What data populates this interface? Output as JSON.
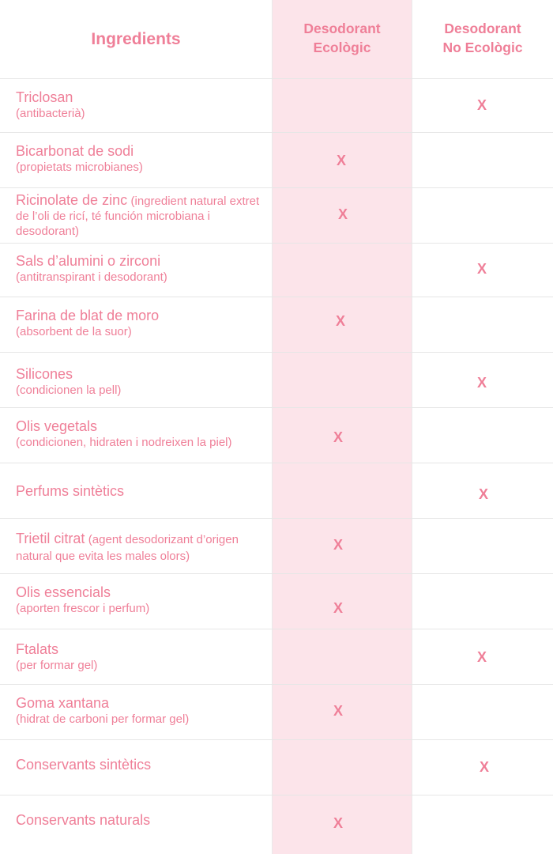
{
  "header": {
    "ingredients": "Ingredients",
    "eco_line1": "Desodorant",
    "eco_line2": "Ecològic",
    "noneco_line1": "Desodorant",
    "noneco_line2": "No Ecològic"
  },
  "colors": {
    "accent_text": "#ef7f98",
    "eco_column_bg": "#fce4ea",
    "grid_line": "#e6e6e6"
  },
  "rows": [
    {
      "name": "Triclosan",
      "note": "(antibacterià)",
      "eco": "",
      "noneco": "X"
    },
    {
      "name": "Bicarbonat de sodi",
      "note": "(propietats microbianes)",
      "eco": "X",
      "noneco": ""
    },
    {
      "name": "Ricinolate de zinc",
      "note": "(ingredient natural extret de l’oli de ricí, té función microbiana i  desodorant)",
      "eco": "X",
      "noneco": ""
    },
    {
      "name": "Sals d’alumini o zirconi",
      "note": "(antitranspirant i desodorant)",
      "eco": "",
      "noneco": "X"
    },
    {
      "name": "Farina de blat de moro",
      "note": "(absorbent de la suor)",
      "eco": "X",
      "noneco": ""
    },
    {
      "name": "Silicones",
      "note": "(condicionen la pell)",
      "eco": "",
      "noneco": "X"
    },
    {
      "name": "Olis vegetals",
      "note": "(condicionen, hidraten i nodreixen la piel)",
      "eco": "X",
      "noneco": ""
    },
    {
      "name": "Perfums sintètics",
      "note": "",
      "eco": "",
      "noneco": "X"
    },
    {
      "name": "Trietil citrat",
      "note": "(agent desodorizant d’origen natural que evita les males olors)",
      "eco": "X",
      "noneco": ""
    },
    {
      "name": "Olis essencials",
      "note": "(aporten frescor i perfum)",
      "eco": "X",
      "noneco": ""
    },
    {
      "name": "Ftalats",
      "note": "(per formar gel)",
      "eco": "",
      "noneco": "X"
    },
    {
      "name": "Goma xantana",
      "note": "(hidrat de carboni per formar gel)",
      "eco": "X",
      "noneco": ""
    },
    {
      "name": "Conservants sintètics",
      "note": "",
      "eco": "",
      "noneco": "X"
    },
    {
      "name": "Conservants naturals",
      "note": "",
      "eco": "X",
      "noneco": ""
    }
  ]
}
